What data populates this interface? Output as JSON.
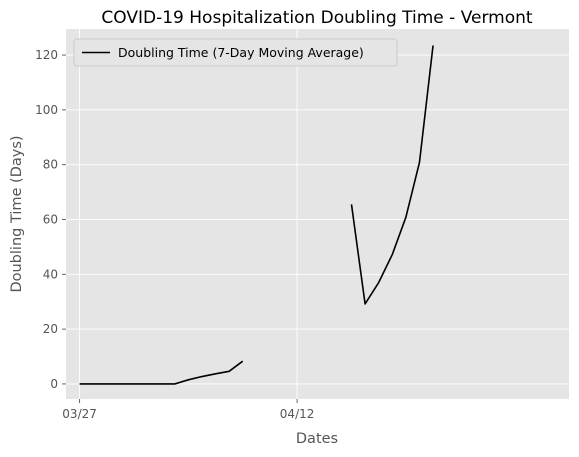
{
  "chart_data": {
    "type": "line",
    "title": "COVID-19 Hospitalization Doubling Time - Vermont",
    "xlabel": "Dates",
    "ylabel": "Doubling Time (Days)",
    "x_tick_labels": [
      "03/27",
      "04/12"
    ],
    "x_tick_dates": [
      "2020-03-27",
      "2020-04-12"
    ],
    "y_ticks": [
      0,
      20,
      40,
      60,
      80,
      100,
      120
    ],
    "xlim": [
      "2020-03-26",
      "2020-05-02"
    ],
    "ylim": [
      -5.5,
      129.5
    ],
    "grid": true,
    "legend_position": "top-left",
    "series": [
      {
        "name": "Doubling Time (7-Day Moving Average)",
        "color": "#000000",
        "x": [
          "2020-03-27",
          "2020-03-28",
          "2020-03-29",
          "2020-03-30",
          "2020-03-31",
          "2020-04-01",
          "2020-04-02",
          "2020-04-03",
          "2020-04-04",
          "2020-04-05",
          "2020-04-06",
          "2020-04-07",
          "2020-04-08",
          "2020-04-09",
          "2020-04-10",
          "2020-04-11",
          "2020-04-12",
          "2020-04-13",
          "2020-04-14",
          "2020-04-15",
          "2020-04-16",
          "2020-04-17",
          "2020-04-18",
          "2020-04-19",
          "2020-04-20",
          "2020-04-21",
          "2020-04-22",
          "2020-04-23"
        ],
        "y": [
          0,
          0,
          0,
          0,
          0,
          0,
          0,
          0,
          1.5,
          2.7,
          3.7,
          4.6,
          8.3,
          null,
          null,
          null,
          null,
          null,
          null,
          null,
          65.5,
          29.2,
          37,
          47.2,
          60.8,
          80.8,
          123.5,
          null
        ]
      }
    ]
  },
  "colors": {
    "plot_background": "#e5e5e5",
    "grid": "#ffffff",
    "line": "#000000"
  }
}
